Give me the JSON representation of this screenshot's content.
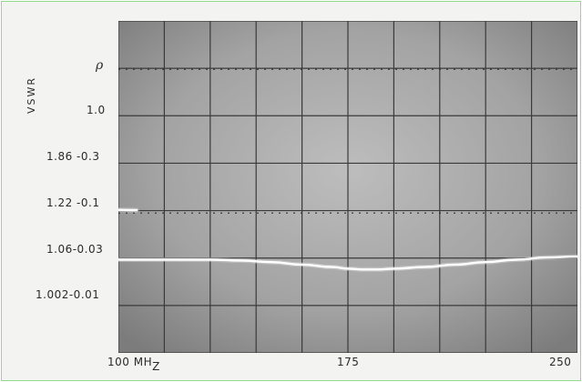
{
  "chart_data": {
    "type": "line",
    "title": "",
    "xlabel": "",
    "ylabel_left": "VSWR",
    "ylabel_right": "ρ",
    "x_ticks": [
      {
        "value": 100,
        "label": "100 MH"
      },
      {
        "value": 175,
        "label": "175"
      },
      {
        "value": 250,
        "label": "250"
      }
    ],
    "x_unit_subscript": "Z",
    "xlim": [
      100,
      250
    ],
    "y_tick_labels": [
      "1.0",
      "1.86 -0.3",
      "1.22 -0.1",
      "1.06-0.03",
      "1.002-0.01"
    ],
    "grid": true,
    "series": [
      {
        "name": "",
        "x": [
          100,
          105,
          110,
          120,
          130,
          140,
          150,
          160,
          170,
          175,
          180,
          185,
          190,
          200,
          210,
          220,
          230,
          240,
          250
        ],
        "values": [
          1.058,
          1.058,
          1.058,
          1.058,
          1.058,
          1.057,
          1.055,
          1.052,
          1.049,
          1.047,
          1.046,
          1.046,
          1.047,
          1.049,
          1.052,
          1.055,
          1.058,
          1.062,
          1.065
        ]
      },
      {
        "name": "",
        "x": [
          100,
          103,
          106
        ],
        "values": [
          1.23,
          1.228,
          1.226
        ]
      }
    ]
  }
}
